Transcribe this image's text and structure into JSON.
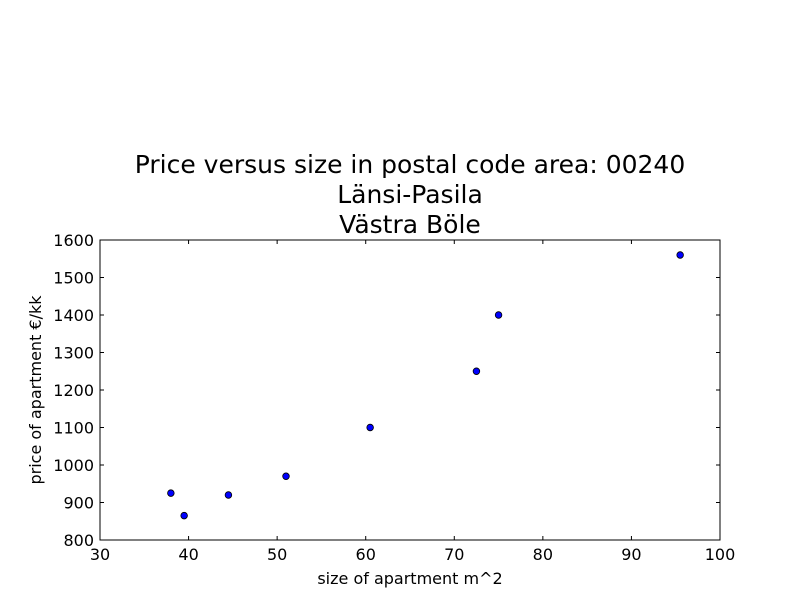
{
  "chart_data": {
    "type": "scatter",
    "title_lines": [
      "Price versus size in postal code area: 00240",
      "Länsi-Pasila",
      "Västra Böle"
    ],
    "xlabel": "size of apartment m^2",
    "ylabel": "price of apartment €/kk",
    "xlim": [
      30,
      100
    ],
    "ylim": [
      800,
      1600
    ],
    "xticks": [
      30,
      40,
      50,
      60,
      70,
      80,
      90,
      100
    ],
    "yticks": [
      800,
      900,
      1000,
      1100,
      1200,
      1300,
      1400,
      1500,
      1600
    ],
    "grid": false,
    "point_color": "#0000ff",
    "points": [
      {
        "x": 38,
        "y": 925
      },
      {
        "x": 39.5,
        "y": 865
      },
      {
        "x": 44.5,
        "y": 920
      },
      {
        "x": 51,
        "y": 970
      },
      {
        "x": 60.5,
        "y": 1100
      },
      {
        "x": 72.5,
        "y": 1250
      },
      {
        "x": 75,
        "y": 1400
      },
      {
        "x": 95.5,
        "y": 1560
      }
    ]
  }
}
